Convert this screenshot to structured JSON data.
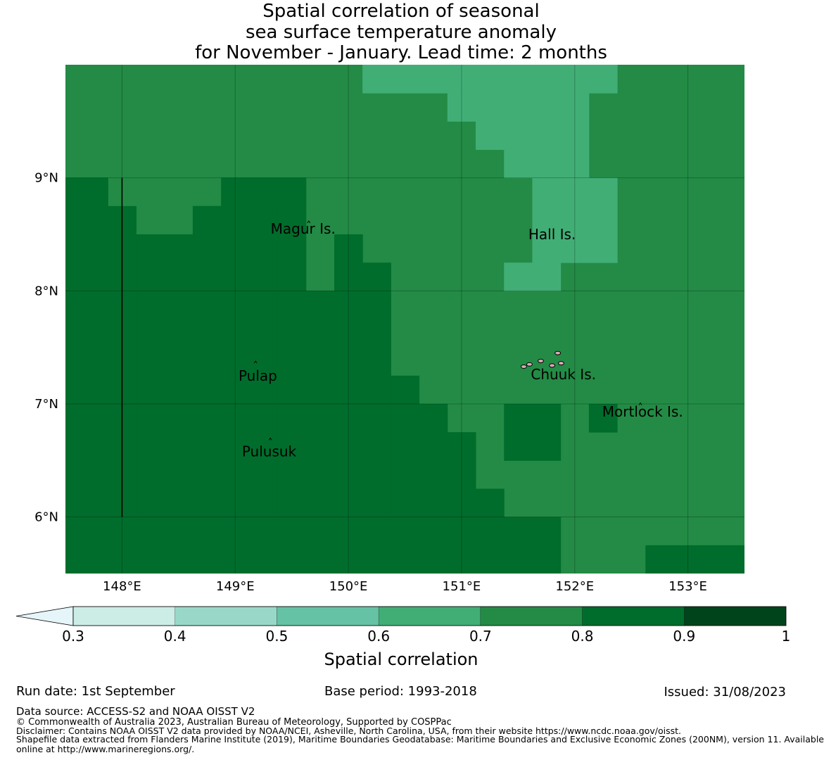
{
  "title": {
    "line1": "Spatial correlation of seasonal",
    "line2": "sea surface temperature anomaly",
    "line3": "for November - January. Lead time: 2 months"
  },
  "map": {
    "lon_range": [
      147.5,
      153.5
    ],
    "lat_range": [
      5.5,
      10.0
    ],
    "lon_ticks": [
      148,
      149,
      150,
      151,
      152,
      153
    ],
    "lon_tick_labels": [
      "148°E",
      "149°E",
      "150°E",
      "151°E",
      "152°E",
      "153°E"
    ],
    "lat_ticks": [
      6,
      7,
      8,
      9
    ],
    "lat_tick_labels": [
      "6°N",
      "7°N",
      "8°N",
      "9°N"
    ],
    "band_colors": {
      "0.6-0.7": "#41ae76",
      "0.7-0.8": "#238b45",
      "0.8-0.9": "#006d2c"
    },
    "default_band": "0.7-0.8",
    "cells_06_07": [
      [
        150.125,
        9.75,
        151.375,
        10.0
      ],
      [
        150.875,
        9.5,
        151.375,
        9.75
      ],
      [
        151.125,
        9.25,
        151.375,
        9.5
      ],
      [
        151.375,
        9.0,
        152.125,
        10.0
      ],
      [
        152.125,
        9.75,
        152.375,
        10.0
      ],
      [
        151.625,
        8.25,
        152.375,
        9.0
      ],
      [
        151.375,
        8.0,
        151.875,
        8.25
      ]
    ],
    "cells_08_09": [
      [
        147.5,
        8.75,
        147.875,
        9.0
      ],
      [
        147.5,
        6.0,
        148.125,
        8.75
      ],
      [
        148.125,
        8.25,
        148.625,
        8.5
      ],
      [
        148.125,
        6.0,
        148.625,
        8.25
      ],
      [
        148.625,
        8.75,
        149.375,
        8.5
      ],
      [
        148.625,
        6.0,
        149.375,
        8.75
      ],
      [
        148.875,
        8.75,
        149.625,
        9.0
      ],
      [
        149.375,
        8.0,
        149.625,
        8.75
      ],
      [
        149.375,
        6.0,
        149.875,
        8.0
      ],
      [
        149.875,
        8.25,
        150.125,
        8.5
      ],
      [
        149.875,
        6.0,
        150.375,
        8.25
      ],
      [
        150.375,
        7.25,
        150.625,
        7.25
      ],
      [
        150.375,
        6.0,
        150.625,
        7.25
      ],
      [
        150.625,
        6.0,
        150.875,
        7.0
      ],
      [
        150.875,
        6.0,
        151.125,
        6.75
      ],
      [
        151.125,
        6.0,
        151.375,
        6.25
      ],
      [
        147.5,
        5.5,
        151.875,
        6.0
      ],
      [
        151.375,
        6.5,
        151.875,
        7.0
      ],
      [
        152.125,
        6.75,
        152.375,
        7.0
      ],
      [
        152.625,
        5.5,
        153.5,
        5.75
      ]
    ],
    "places": [
      {
        "name": "Magur Is.",
        "lon": 149.6,
        "lat": 8.55
      },
      {
        "name": "Hall Is.",
        "lon": 151.8,
        "lat": 8.5
      },
      {
        "name": "Pulap",
        "lon": 149.2,
        "lat": 7.25
      },
      {
        "name": "Chuuk Is.",
        "lon": 151.9,
        "lat": 7.26
      },
      {
        "name": "Mortlock Is.",
        "lon": 152.6,
        "lat": 6.93
      },
      {
        "name": "Pulusuk",
        "lon": 149.3,
        "lat": 6.58
      }
    ]
  },
  "colorbar": {
    "label": "Spatial correlation",
    "ticks": [
      "0.3",
      "0.4",
      "0.5",
      "0.6",
      "0.7",
      "0.8",
      "0.9",
      "1"
    ],
    "under_color": "#e5f5f9",
    "colors": [
      "#ccece6",
      "#99d8c9",
      "#66c2a4",
      "#41ae76",
      "#238b45",
      "#006d2c",
      "#00441b"
    ]
  },
  "footer": {
    "run_date": "Run date: 1st September",
    "base_period": "Base period: 1993-2018",
    "issued": "Issued: 31/08/2023",
    "data_source": "Data source: ACCESS-S2 and NOAA OISST V2",
    "copyright": "© Commonwealth of Australia 2023, Australian Bureau of Meteorology, Supported by COSPPac",
    "disclaimer": "Disclaimer: Contains NOAA OISST V2 data provided by NOAA/NCEI, Asheville, North Carolina, USA, from their website https://www.ncdc.noaa.gov/oisst.",
    "shapefile_1": "Shapefile data extracted from Flanders Marine Institute (2019), Maritime Boundaries Geodatabase: Maritime Boundaries and Exclusive Economic Zones (200NM), version 11. Available",
    "shapefile_2": "online at http://www.marineregions.org/."
  }
}
